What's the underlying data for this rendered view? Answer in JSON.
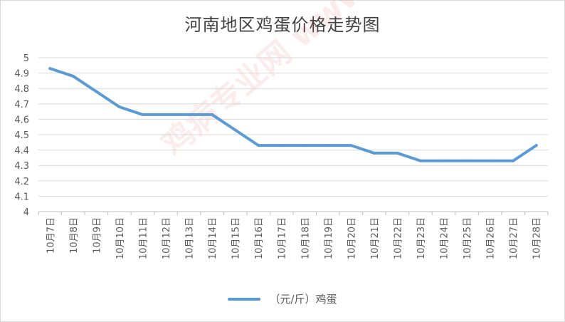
{
  "chart_data": {
    "type": "line",
    "title": "河南地区鸡蛋价格走势图",
    "categories": [
      "10月7日",
      "10月8日",
      "10月9日",
      "10月10日",
      "10月11日",
      "10月12日",
      "10月13日",
      "10月14日",
      "10月15日",
      "10月16日",
      "10月17日",
      "10月18日",
      "10月19日",
      "10月20日",
      "10月21日",
      "10月22日",
      "10月23日",
      "10月24日",
      "10月25日",
      "10月26日",
      "10月27日",
      "10月28日"
    ],
    "series": [
      {
        "name": "（元/斤）鸡蛋",
        "color": "#5b9bd5",
        "values": [
          4.93,
          4.88,
          4.78,
          4.68,
          4.63,
          4.63,
          4.63,
          4.63,
          4.53,
          4.43,
          4.43,
          4.43,
          4.43,
          4.43,
          4.38,
          4.38,
          4.33,
          4.33,
          4.33,
          4.33,
          4.33,
          4.43
        ]
      }
    ],
    "ylim": [
      4,
      5
    ],
    "yticks": [
      "4",
      "4.1",
      "4.2",
      "4.3",
      "4.4",
      "4.5",
      "4.6",
      "4.7",
      "4.8",
      "4.9",
      "5"
    ],
    "grid": true,
    "legend": "bottom",
    "watermark": "鸡病专业网 www.jbzyw.com"
  }
}
